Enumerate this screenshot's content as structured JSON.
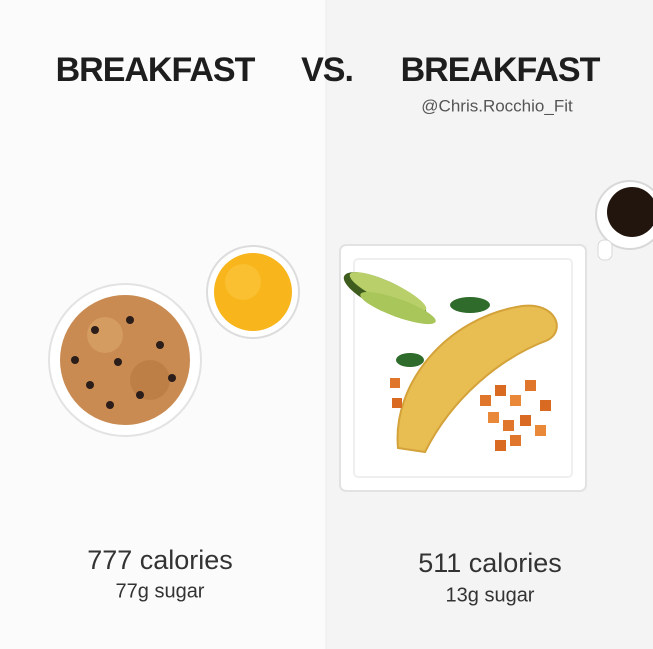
{
  "header": {
    "left": "BREAKFAST",
    "vs": "VS.",
    "right": "BREAKFAST",
    "credit": "@Chris.Rocchio_Fit"
  },
  "meals": [
    {
      "calories": "777 calories",
      "sugar": "77g sugar"
    },
    {
      "calories": "511 calories",
      "sugar": "13g sugar"
    }
  ]
}
